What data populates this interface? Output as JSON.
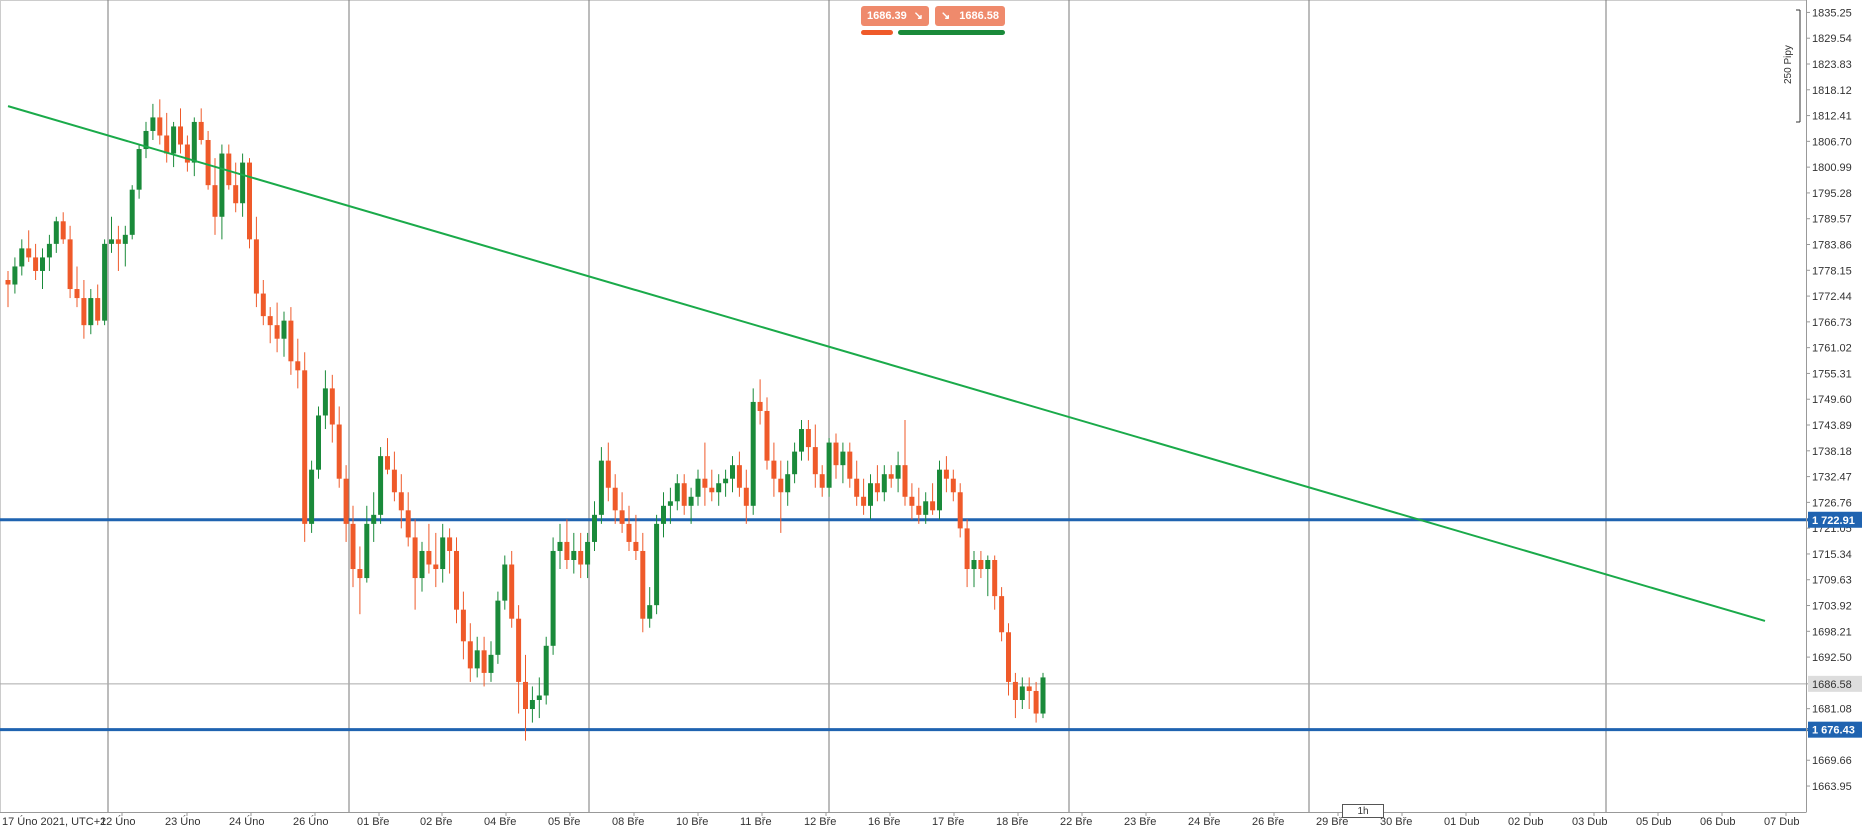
{
  "trade_panel": {
    "sell_price": "1686.39",
    "buy_price": "1686.58",
    "sell_arrow": "↘",
    "buy_arrow": "↘"
  },
  "scale_label": "250 Pipy",
  "timeframe": "1h",
  "colors": {
    "bull": "#1a8a3a",
    "bear": "#ef5a2a",
    "trendline": "#1aaa4a",
    "hline": "#1f63b0",
    "grid": "#7a7a7a",
    "current_price_line": "#aaaaaa"
  },
  "chart_data": {
    "type": "candlestick",
    "instrument_quote_precision": 2,
    "ylim": [
      1658.2,
      1838.0
    ],
    "y_ticks": [
      "1835.25",
      "1829.54",
      "1823.83",
      "1818.12",
      "1812.41",
      "1806.70",
      "1800.99",
      "1795.28",
      "1789.57",
      "1783.86",
      "1778.15",
      "1772.44",
      "1766.73",
      "1761.02",
      "1755.31",
      "1749.60",
      "1743.89",
      "1738.18",
      "1732.47",
      "1726.76",
      "1721.05",
      "1715.34",
      "1709.63",
      "1703.92",
      "1698.21",
      "1692.50",
      "1686.58",
      "1681.08",
      "1676.43",
      "1669.66",
      "1663.95"
    ],
    "x_tick_labels": [
      "17 Úno 2021, UTC+1",
      "22 Úno",
      "23 Úno",
      "24 Úno",
      "26 Úno",
      "01 Bře",
      "02 Bře",
      "04 Bře",
      "05 Bře",
      "08 Bře",
      "10 Bře",
      "11 Bře",
      "12 Bře",
      "16 Bře",
      "17 Bře",
      "18 Bře",
      "22 Bře",
      "23 Bře",
      "24 Bře",
      "26 Bře",
      "29 Bře",
      "30 Bře",
      "01 Dub",
      "02 Dub",
      "03 Dub",
      "05 Dub",
      "06 Dub",
      "07 Dub"
    ],
    "horizontal_levels": [
      {
        "label": "1 722.91",
        "value": 1722.91
      },
      {
        "label": "1 676.43",
        "value": 1676.43
      }
    ],
    "current_price": {
      "label": "1686.58",
      "value": 1686.58
    },
    "trendline": {
      "from": {
        "bar": 0,
        "price": 1814.5
      },
      "to": {
        "bar": 184,
        "price": 1700.5
      }
    },
    "candles": [
      [
        1776,
        1778,
        1770,
        1775
      ],
      [
        1775,
        1781,
        1773,
        1779
      ],
      [
        1779,
        1785,
        1777,
        1783
      ],
      [
        1783,
        1787,
        1780,
        1781
      ],
      [
        1781,
        1784,
        1776,
        1778
      ],
      [
        1778,
        1783,
        1774,
        1781
      ],
      [
        1781,
        1786,
        1778,
        1784
      ],
      [
        1784,
        1790,
        1782,
        1789
      ],
      [
        1789,
        1791,
        1784,
        1785
      ],
      [
        1785,
        1788,
        1772,
        1774
      ],
      [
        1774,
        1779,
        1770,
        1772
      ],
      [
        1772,
        1776,
        1763,
        1766
      ],
      [
        1766,
        1774,
        1764,
        1772
      ],
      [
        1772,
        1775,
        1766,
        1767
      ],
      [
        1767,
        1785,
        1766,
        1784
      ],
      [
        1784,
        1790,
        1782,
        1785
      ],
      [
        1785,
        1788,
        1778,
        1784
      ],
      [
        1784,
        1788,
        1779,
        1786
      ],
      [
        1786,
        1797,
        1785,
        1796
      ],
      [
        1796,
        1806,
        1794,
        1805
      ],
      [
        1805,
        1811,
        1803,
        1809
      ],
      [
        1809,
        1815,
        1807,
        1812
      ],
      [
        1812,
        1816,
        1806,
        1808
      ],
      [
        1808,
        1813,
        1802,
        1804
      ],
      [
        1804,
        1811,
        1801,
        1810
      ],
      [
        1810,
        1814,
        1804,
        1806
      ],
      [
        1806,
        1808,
        1800,
        1802
      ],
      [
        1802,
        1812,
        1799,
        1811
      ],
      [
        1811,
        1814,
        1806,
        1807
      ],
      [
        1807,
        1809,
        1796,
        1797
      ],
      [
        1797,
        1803,
        1786,
        1790
      ],
      [
        1790,
        1806,
        1785,
        1804
      ],
      [
        1804,
        1806,
        1796,
        1797
      ],
      [
        1797,
        1802,
        1791,
        1793
      ],
      [
        1793,
        1804,
        1790,
        1802
      ],
      [
        1802,
        1803,
        1783,
        1785
      ],
      [
        1785,
        1790,
        1770,
        1773
      ],
      [
        1773,
        1776,
        1766,
        1768
      ],
      [
        1768,
        1770,
        1762,
        1766
      ],
      [
        1766,
        1771,
        1760,
        1763
      ],
      [
        1763,
        1769,
        1759,
        1767
      ],
      [
        1767,
        1770,
        1755,
        1758
      ],
      [
        1758,
        1763,
        1752,
        1756
      ],
      [
        1756,
        1760,
        1718,
        1722
      ],
      [
        1722,
        1736,
        1720,
        1734
      ],
      [
        1734,
        1748,
        1732,
        1746
      ],
      [
        1746,
        1756,
        1743,
        1752
      ],
      [
        1752,
        1755,
        1740,
        1744
      ],
      [
        1744,
        1748,
        1730,
        1732
      ],
      [
        1732,
        1735,
        1718,
        1722
      ],
      [
        1722,
        1726,
        1708,
        1712
      ],
      [
        1712,
        1717,
        1702,
        1710
      ],
      [
        1710,
        1726,
        1709,
        1722
      ],
      [
        1722,
        1729,
        1718,
        1724
      ],
      [
        1724,
        1739,
        1722,
        1737
      ],
      [
        1737,
        1741,
        1733,
        1734
      ],
      [
        1734,
        1738,
        1727,
        1729
      ],
      [
        1729,
        1733,
        1721,
        1725
      ],
      [
        1725,
        1729,
        1717,
        1719
      ],
      [
        1719,
        1723,
        1703,
        1710
      ],
      [
        1710,
        1718,
        1707,
        1716
      ],
      [
        1716,
        1722,
        1711,
        1713
      ],
      [
        1713,
        1720,
        1708,
        1712
      ],
      [
        1712,
        1722,
        1709,
        1719
      ],
      [
        1719,
        1721,
        1711,
        1716
      ],
      [
        1716,
        1719,
        1700,
        1703
      ],
      [
        1703,
        1707,
        1692,
        1696
      ],
      [
        1696,
        1700,
        1687,
        1690
      ],
      [
        1690,
        1697,
        1688,
        1694
      ],
      [
        1694,
        1697,
        1686,
        1689
      ],
      [
        1689,
        1696,
        1687,
        1693
      ],
      [
        1693,
        1707,
        1691,
        1705
      ],
      [
        1705,
        1715,
        1703,
        1713
      ],
      [
        1713,
        1716,
        1699,
        1701
      ],
      [
        1701,
        1704,
        1680,
        1687
      ],
      [
        1687,
        1693,
        1674,
        1681
      ],
      [
        1681,
        1686,
        1678,
        1683
      ],
      [
        1683,
        1688,
        1679,
        1684
      ],
      [
        1684,
        1697,
        1682,
        1695
      ],
      [
        1695,
        1719,
        1693,
        1716
      ],
      [
        1716,
        1722,
        1712,
        1718
      ],
      [
        1718,
        1723,
        1712,
        1714
      ],
      [
        1714,
        1720,
        1711,
        1716
      ],
      [
        1716,
        1720,
        1710,
        1713
      ],
      [
        1713,
        1720,
        1710,
        1718
      ],
      [
        1718,
        1727,
        1716,
        1724
      ],
      [
        1724,
        1739,
        1722,
        1736
      ],
      [
        1736,
        1740,
        1727,
        1730
      ],
      [
        1730,
        1733,
        1722,
        1725
      ],
      [
        1725,
        1729,
        1720,
        1722
      ],
      [
        1722,
        1726,
        1716,
        1718
      ],
      [
        1718,
        1724,
        1714,
        1716
      ],
      [
        1716,
        1720,
        1698,
        1701
      ],
      [
        1701,
        1708,
        1699,
        1704
      ],
      [
        1704,
        1724,
        1702,
        1722
      ],
      [
        1722,
        1729,
        1719,
        1726
      ],
      [
        1726,
        1730,
        1722,
        1727
      ],
      [
        1727,
        1733,
        1725,
        1731
      ],
      [
        1731,
        1733,
        1724,
        1726
      ],
      [
        1726,
        1730,
        1722,
        1728
      ],
      [
        1728,
        1734,
        1726,
        1732
      ],
      [
        1732,
        1740,
        1726,
        1730
      ],
      [
        1730,
        1734,
        1727,
        1729
      ],
      [
        1729,
        1733,
        1726,
        1731
      ],
      [
        1731,
        1734,
        1728,
        1732
      ],
      [
        1732,
        1737,
        1729,
        1735
      ],
      [
        1735,
        1738,
        1728,
        1730
      ],
      [
        1730,
        1734,
        1722,
        1726
      ],
      [
        1726,
        1752,
        1724,
        1749
      ],
      [
        1749,
        1754,
        1744,
        1747
      ],
      [
        1747,
        1750,
        1734,
        1736
      ],
      [
        1736,
        1740,
        1728,
        1732
      ],
      [
        1732,
        1736,
        1720,
        1729
      ],
      [
        1729,
        1736,
        1726,
        1733
      ],
      [
        1733,
        1740,
        1731,
        1738
      ],
      [
        1738,
        1745,
        1736,
        1743
      ],
      [
        1743,
        1745,
        1736,
        1739
      ],
      [
        1739,
        1744,
        1730,
        1733
      ],
      [
        1733,
        1735,
        1728,
        1730
      ],
      [
        1730,
        1741,
        1728,
        1740
      ],
      [
        1740,
        1742,
        1732,
        1735
      ],
      [
        1735,
        1740,
        1731,
        1738
      ],
      [
        1738,
        1740,
        1730,
        1732
      ],
      [
        1732,
        1736,
        1726,
        1728
      ],
      [
        1728,
        1732,
        1724,
        1726
      ],
      [
        1726,
        1733,
        1723,
        1731
      ],
      [
        1731,
        1735,
        1727,
        1729
      ],
      [
        1729,
        1735,
        1727,
        1733
      ],
      [
        1733,
        1735,
        1730,
        1732
      ],
      [
        1732,
        1738,
        1729,
        1735
      ],
      [
        1735,
        1745,
        1726,
        1728
      ],
      [
        1728,
        1731,
        1723,
        1726
      ],
      [
        1726,
        1730,
        1722,
        1724
      ],
      [
        1724,
        1729,
        1722,
        1727
      ],
      [
        1727,
        1731,
        1724,
        1725
      ],
      [
        1725,
        1736,
        1723,
        1734
      ],
      [
        1734,
        1737,
        1729,
        1732
      ],
      [
        1732,
        1734,
        1727,
        1729
      ],
      [
        1729,
        1731,
        1719,
        1721
      ],
      [
        1721,
        1723,
        1708,
        1712
      ],
      [
        1712,
        1716,
        1708,
        1714
      ],
      [
        1714,
        1716,
        1710,
        1712
      ],
      [
        1712,
        1715,
        1706,
        1714
      ],
      [
        1714,
        1715,
        1703,
        1706
      ],
      [
        1706,
        1708,
        1696,
        1698
      ],
      [
        1698,
        1700,
        1684,
        1687
      ],
      [
        1687,
        1689,
        1679,
        1683
      ],
      [
        1683,
        1688,
        1681,
        1686
      ],
      [
        1686,
        1688,
        1681,
        1685
      ],
      [
        1685,
        1687,
        1678,
        1680
      ],
      [
        1680,
        1689,
        1679,
        1688
      ]
    ]
  }
}
